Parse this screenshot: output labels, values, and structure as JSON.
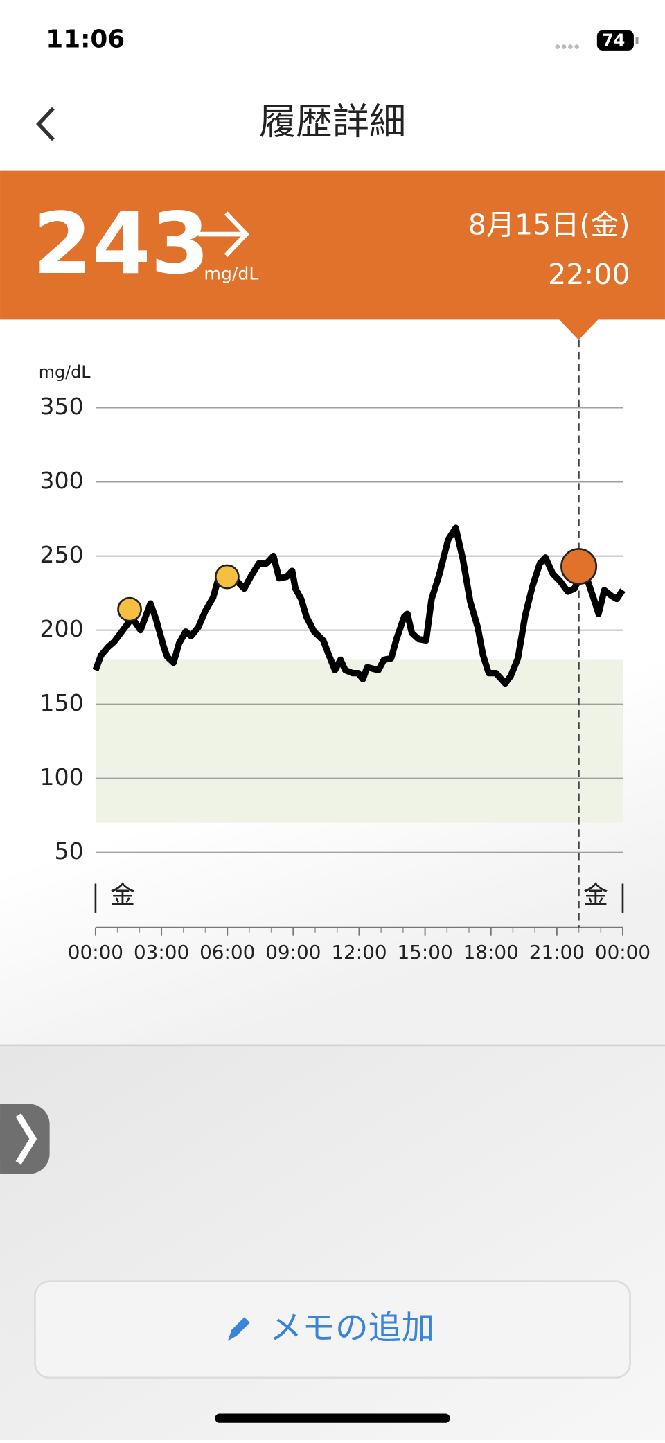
{
  "status_bar": {
    "time": "11:06",
    "battery": "74"
  },
  "header": {
    "title": "履歴詳細"
  },
  "reading": {
    "value": 243,
    "unit": "mg/dL",
    "date": "8月15日(金)",
    "time": "22:00"
  },
  "chart_data": {
    "type": "line",
    "y_label": "mg/dL",
    "color": "#000000",
    "x": [
      0,
      0.25,
      0.6,
      0.84,
      1.5,
      1.63,
      2.05,
      2.5,
      2.76,
      3.1,
      3.26,
      3.55,
      3.8,
      4.1,
      4.35,
      4.68,
      5.0,
      5.35,
      5.6,
      6.0,
      6.44,
      6.77,
      7.1,
      7.44,
      7.78,
      8.1,
      8.36,
      8.7,
      8.95,
      9.1,
      9.36,
      9.6,
      9.95,
      10.37,
      10.6,
      10.9,
      11.15,
      11.37,
      11.7,
      11.96,
      12.17,
      12.37,
      12.88,
      13.13,
      13.46,
      13.7,
      14.05,
      14.2,
      14.4,
      14.7,
      15.05,
      15.3,
      15.64,
      16.05,
      16.4,
      16.72,
      17.06,
      17.4,
      17.64,
      17.9,
      18.23,
      18.65,
      18.9,
      19.23,
      19.56,
      19.9,
      20.23,
      20.48,
      20.82,
      21.15,
      21.5,
      21.8,
      22.07,
      22.32,
      22.66,
      22.9,
      23.16,
      23.5,
      23.73,
      24.0
    ],
    "values": [
      173,
      183,
      189,
      192,
      205,
      209,
      200,
      218,
      207,
      189,
      182,
      178,
      191,
      199,
      196,
      202,
      213,
      222,
      235,
      236,
      233,
      228,
      237,
      245,
      245,
      250,
      235,
      236,
      240,
      228,
      221,
      209,
      199,
      193,
      184,
      173,
      180,
      173,
      171,
      171,
      167,
      175,
      173,
      180,
      181,
      194,
      209,
      211,
      198,
      194,
      193,
      221,
      237,
      261,
      269,
      248,
      219,
      202,
      183,
      171,
      171,
      164,
      169,
      181,
      210,
      230,
      245,
      249,
      238,
      233,
      226,
      228,
      237,
      237,
      222,
      211,
      227,
      223,
      221,
      227
    ],
    "events": {
      "x": [
        1.55,
        5.99
      ],
      "values": [
        214,
        236
      ],
      "color": "#f5bf42"
    },
    "current": {
      "x": 22,
      "color": "#e0722c"
    },
    "target_range": [
      70,
      180
    ],
    "target_color": "#eef3e6",
    "xlim": [
      0,
      24
    ],
    "ylim": [
      0,
      350
    ],
    "yticks": [
      50,
      100,
      150,
      200,
      250,
      300,
      350
    ],
    "xticks": [
      {
        "value": 0,
        "label": "00:00"
      },
      {
        "value": 3,
        "label": "03:00"
      },
      {
        "value": 6,
        "label": "06:00"
      },
      {
        "value": 9,
        "label": "09:00"
      },
      {
        "value": 12,
        "label": "12:00"
      },
      {
        "value": 15,
        "label": "15:00"
      },
      {
        "value": 18,
        "label": "18:00"
      },
      {
        "value": 21,
        "label": "21:00"
      },
      {
        "value": 24,
        "label": "00:00"
      }
    ],
    "xminor": [
      1,
      2,
      4,
      5,
      7,
      8,
      10,
      11,
      13,
      14,
      16,
      17,
      19,
      20,
      22,
      23
    ],
    "day_labels": [
      "金",
      "金"
    ],
    "grid": true
  },
  "memo_button": {
    "label": "メモの追加"
  }
}
